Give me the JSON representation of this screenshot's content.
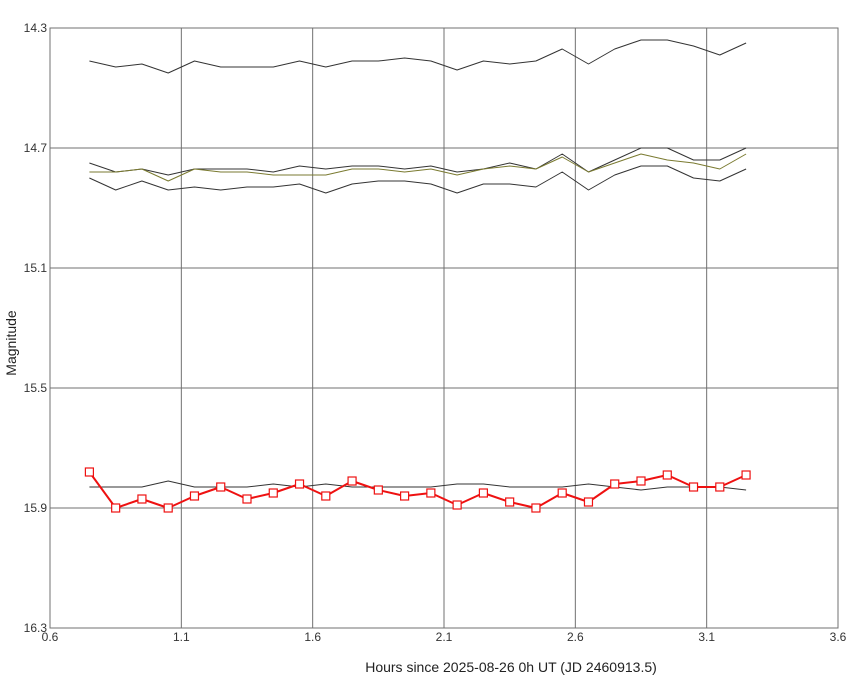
{
  "chart_data": {
    "type": "line",
    "xlabel": "Hours since 2025-08-26 0h UT (JD 2460913.5)",
    "ylabel": "Magnitude",
    "xlim": [
      0.6,
      3.6
    ],
    "ylim": [
      16.3,
      14.3
    ],
    "y_inverted": true,
    "grid": true,
    "xticks": [
      "0.6",
      "1.1",
      "1.6",
      "2.1",
      "2.6",
      "3.1",
      "3.6"
    ],
    "yticks": [
      "14.3",
      "14.7",
      "15.1",
      "15.5",
      "15.9",
      "16.3"
    ],
    "x": [
      0.75,
      0.85,
      0.95,
      1.05,
      1.15,
      1.25,
      1.35,
      1.45,
      1.55,
      1.65,
      1.75,
      1.85,
      1.95,
      2.05,
      2.15,
      2.25,
      2.35,
      2.45,
      2.55,
      2.65,
      2.75,
      2.85,
      2.95,
      3.05,
      3.15,
      3.25
    ],
    "series": [
      {
        "color": "#333333",
        "marker": "none",
        "width": 1,
        "values": [
          14.41,
          14.43,
          14.42,
          14.45,
          14.41,
          14.43,
          14.43,
          14.43,
          14.41,
          14.43,
          14.41,
          14.41,
          14.4,
          14.41,
          14.44,
          14.41,
          14.42,
          14.41,
          14.37,
          14.42,
          14.37,
          14.34,
          14.34,
          14.36,
          14.39,
          14.35
        ]
      },
      {
        "color": "#333333",
        "marker": "none",
        "width": 1,
        "values": [
          14.75,
          14.78,
          14.77,
          14.79,
          14.77,
          14.77,
          14.77,
          14.78,
          14.76,
          14.77,
          14.76,
          14.76,
          14.77,
          14.76,
          14.78,
          14.77,
          14.75,
          14.77,
          14.72,
          14.78,
          14.74,
          14.7,
          14.7,
          14.74,
          14.74,
          14.7
        ]
      },
      {
        "color": "#7a7a30",
        "marker": "none",
        "width": 1,
        "values": [
          14.78,
          14.78,
          14.77,
          14.81,
          14.77,
          14.78,
          14.78,
          14.79,
          14.79,
          14.79,
          14.77,
          14.77,
          14.78,
          14.77,
          14.79,
          14.77,
          14.76,
          14.77,
          14.73,
          14.78,
          14.75,
          14.72,
          14.74,
          14.75,
          14.77,
          14.72
        ]
      },
      {
        "color": "#333333",
        "marker": "none",
        "width": 1,
        "values": [
          14.8,
          14.84,
          14.81,
          14.84,
          14.83,
          14.84,
          14.83,
          14.83,
          14.82,
          14.85,
          14.82,
          14.81,
          14.81,
          14.82,
          14.85,
          14.82,
          14.82,
          14.83,
          14.78,
          14.84,
          14.79,
          14.76,
          14.76,
          14.8,
          14.81,
          14.77
        ]
      },
      {
        "color": "#333333",
        "marker": "none",
        "width": 1,
        "values": [
          15.83,
          15.83,
          15.83,
          15.81,
          15.83,
          15.83,
          15.83,
          15.82,
          15.83,
          15.82,
          15.83,
          15.83,
          15.83,
          15.83,
          15.82,
          15.82,
          15.83,
          15.83,
          15.83,
          15.82,
          15.83,
          15.84,
          15.83,
          15.83,
          15.83,
          15.84
        ]
      },
      {
        "color": "#ee1111",
        "marker": "square",
        "width": 2,
        "values": [
          15.78,
          15.9,
          15.87,
          15.9,
          15.86,
          15.83,
          15.87,
          15.85,
          15.82,
          15.86,
          15.81,
          15.84,
          15.86,
          15.85,
          15.89,
          15.85,
          15.88,
          15.9,
          15.85,
          15.88,
          15.82,
          15.81,
          15.79,
          15.83,
          15.83,
          15.79
        ]
      }
    ]
  }
}
